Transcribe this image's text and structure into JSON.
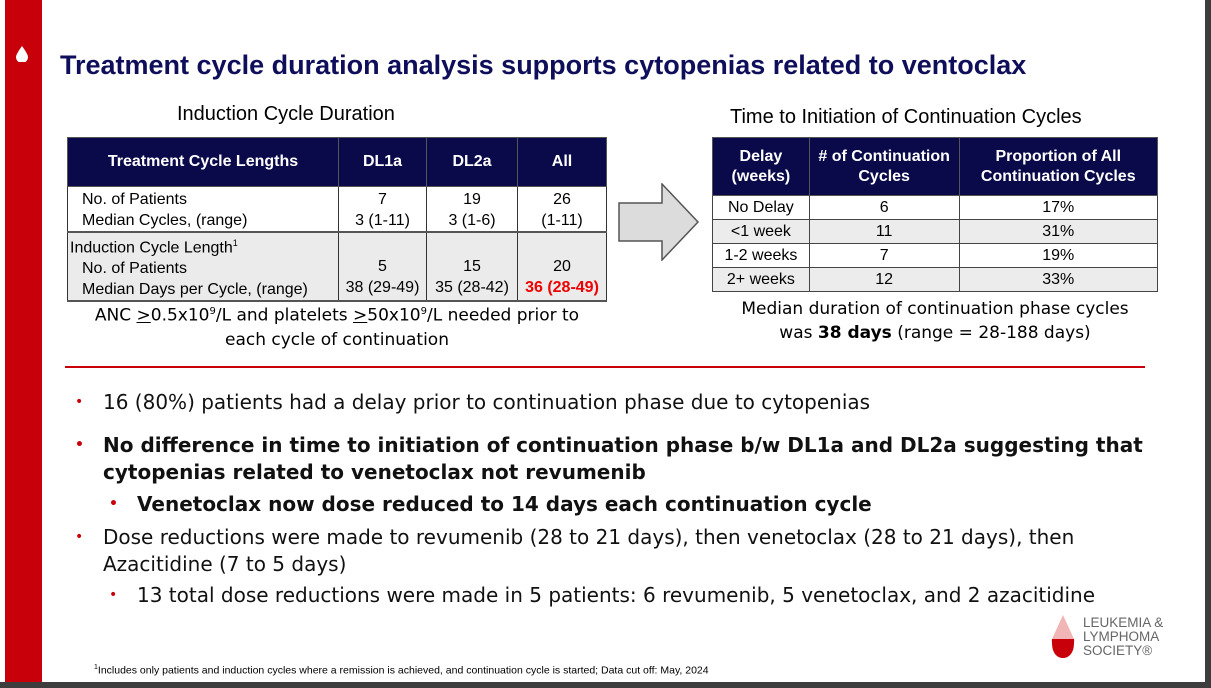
{
  "title": "Treatment cycle duration analysis supports cytopenias related to ventoclax",
  "left": {
    "caption": "Induction Cycle Duration",
    "headers": [
      "Treatment Cycle Lengths",
      "DL1a",
      "DL2a",
      "All"
    ],
    "rows": [
      [
        "No. of Patients",
        "7",
        "19",
        "26"
      ],
      [
        "Median Cycles, (range)",
        "3 (1-11)",
        "3 (1-6)",
        "(1-11)"
      ]
    ],
    "section": "Induction Cycle Length",
    "section_sup": "1",
    "rows2": [
      [
        "No. of Patients",
        "5",
        "15",
        "20"
      ],
      [
        "Median Days per Cycle, (range)",
        "38 (29-49)",
        "35 (28-42)",
        "36 (28-49)"
      ]
    ],
    "note_a": "ANC ",
    "note_ge1": ">",
    "note_b": "0.5x10",
    "note_exp": "9",
    "note_c": "/L and platelets ",
    "note_ge2": ">",
    "note_d": "50x10",
    "note_e": "/L needed prior to",
    "note_line2": "each cycle of continuation"
  },
  "right": {
    "caption": "Time to Initiation of Continuation Cycles",
    "headers": [
      "Delay (weeks)",
      "# of Continuation Cycles",
      "Proportion of All Continuation Cycles"
    ],
    "rows": [
      [
        "No Delay",
        "6",
        "17%"
      ],
      [
        "<1 week",
        "11",
        "31%"
      ],
      [
        "1-2 weeks",
        "7",
        "19%"
      ],
      [
        "2+ weeks",
        "12",
        "33%"
      ]
    ],
    "note_line1": "Median duration of continuation phase cycles",
    "note_a": "was ",
    "note_bold": "38 days",
    "note_b": " (range = 28-188 days)"
  },
  "bullets": [
    "16 (80%) patients had a delay prior to continuation phase due to cytopenias",
    "No difference in time to initiation of continuation phase b/w DL1a and DL2a suggesting that",
    "cytopenias related to venetoclax not revumenib",
    "Venetoclax now dose reduced to 14 days each continuation cycle",
    "Dose reductions were made to revumenib (28 to 21 days), then venetoclax (28 to 21 days), then",
    "Azacitidine (7 to 5 days)",
    "13 total dose reductions were made in 5 patients: 6 revumenib, 5 venetoclax, and 2 azacitidine"
  ],
  "bullet_char": "•",
  "footnote_sup": "1",
  "footnote": "Includes only patients and induction cycles where a remission is achieved, and continuation cycle is started; Data cut off: May, 2024",
  "logo": {
    "line1": "LEUKEMIA &",
    "line2": "LYMPHOMA",
    "line3": "SOCIETY®"
  },
  "colors": {
    "red": "#c8000a",
    "navy": "#0a0a4a"
  }
}
